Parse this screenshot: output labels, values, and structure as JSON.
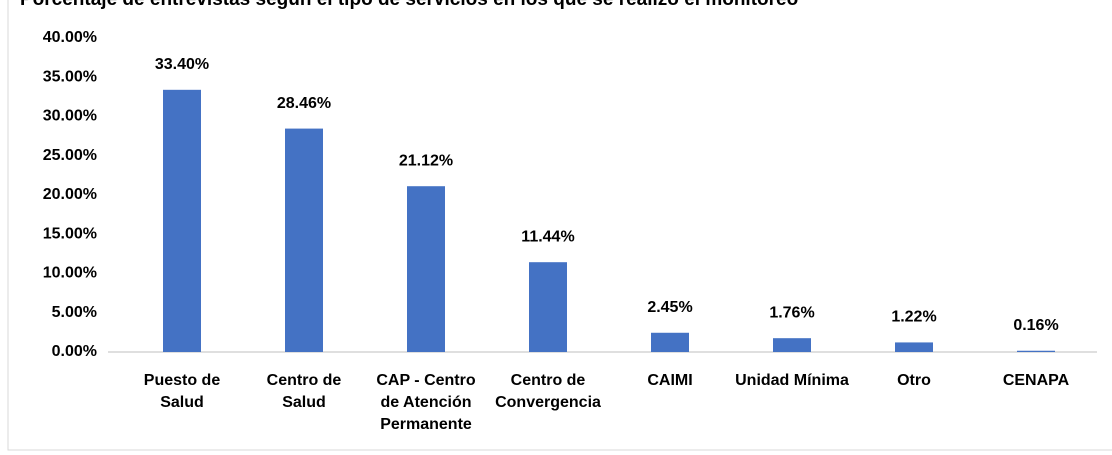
{
  "chart_data": {
    "type": "bar",
    "title": "Porcentaje de entrevistas según el tipo de servicios en los que se realizó el monitoreo",
    "categories": [
      "Puesto de Salud",
      "Centro de Salud",
      "CAP - Centro de Atención Permanente",
      "Centro de Convergencia",
      "CAIMI",
      "Unidad Mínima",
      "Otro",
      "CENAPA"
    ],
    "values": [
      33.4,
      28.46,
      21.12,
      11.44,
      2.45,
      1.76,
      1.22,
      0.16
    ],
    "value_labels": [
      "33.40%",
      "28.46%",
      "21.12%",
      "11.44%",
      "2.45%",
      "1.76%",
      "1.22%",
      "0.16%"
    ],
    "color": "#4472c4",
    "ylim": [
      0,
      40
    ],
    "yticks": [
      {
        "value": 0,
        "label": "0.00%"
      },
      {
        "value": 5,
        "label": "5.00%"
      },
      {
        "value": 10,
        "label": "10.00%"
      },
      {
        "value": 15,
        "label": "15.00%"
      },
      {
        "value": 20,
        "label": "20.00%"
      },
      {
        "value": 25,
        "label": "25.00%"
      },
      {
        "value": 30,
        "label": "30.00%"
      },
      {
        "value": 35,
        "label": "35.00%"
      },
      {
        "value": 40,
        "label": "40.00%"
      }
    ],
    "grid": false
  }
}
